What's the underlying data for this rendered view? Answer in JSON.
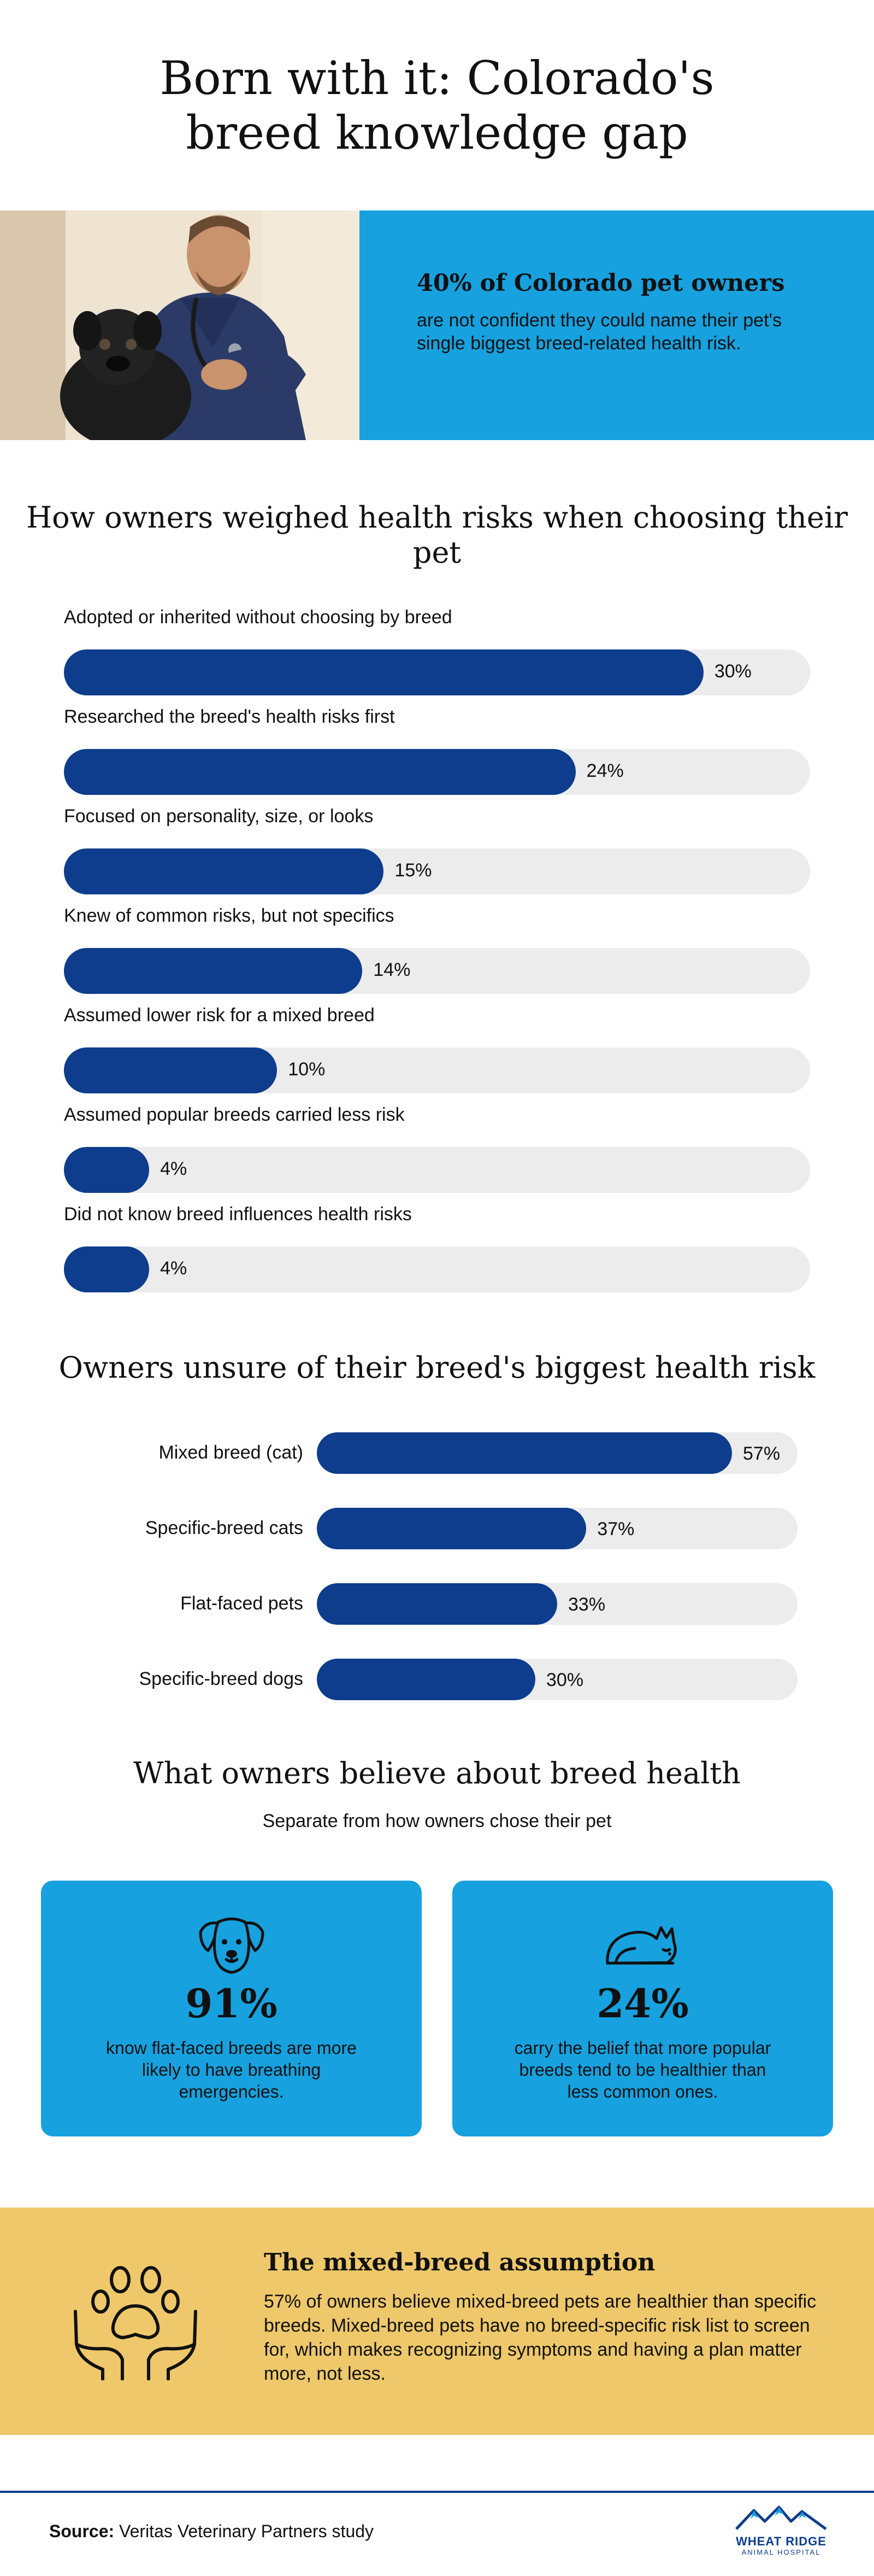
{
  "title": "Born with it: Colorado's breed knowledge gap",
  "hero": {
    "headline": "40% of Colorado pet owners",
    "body": "are not confident they could name their pet's single biggest breed-related health risk."
  },
  "chart_data": [
    {
      "type": "bar",
      "title": "How owners weighed health risks when choosing their pet",
      "orientation": "horizontal",
      "xlim": [
        0,
        35
      ],
      "categories": [
        "Adopted or inherited without choosing by breed",
        "Researched the breed's health risks first",
        "Focused on personality, size, or looks",
        "Knew of common risks, but not specifics",
        "Assumed lower risk for a mixed breed",
        "Assumed popular breeds carried less risk",
        "Did not know breed influences health risks"
      ],
      "values": [
        30,
        24,
        15,
        14,
        10,
        4,
        4
      ],
      "value_labels": [
        "30%",
        "24%",
        "15%",
        "14%",
        "10%",
        "4%",
        "4%"
      ],
      "bar_color": "#0d3d8c",
      "track_color": "#ececec"
    },
    {
      "type": "bar",
      "title": "Owners unsure of their breed's biggest health risk",
      "orientation": "horizontal",
      "xlim": [
        0,
        66
      ],
      "categories": [
        "Mixed breed (cat)",
        "Specific-breed cats",
        "Flat-faced pets",
        "Specific-breed dogs"
      ],
      "values": [
        57,
        37,
        33,
        30
      ],
      "value_labels": [
        "57%",
        "37%",
        "33%",
        "30%"
      ],
      "bar_color": "#0d3d8c",
      "track_color": "#ececec"
    }
  ],
  "beliefs": {
    "title": "What owners believe about breed health",
    "subtitle": "Separate from how owners chose their pet",
    "cards": [
      {
        "icon": "dog-face-icon",
        "pct": "91%",
        "text": "know flat-faced breeds are more likely to have breathing emergencies."
      },
      {
        "icon": "sleeping-cat-icon",
        "pct": "24%",
        "text": "carry the belief that more popular breeds tend to be healthier than less common ones."
      }
    ]
  },
  "mixed": {
    "icon": "paw-in-hands-icon",
    "title": "The mixed-breed assumption",
    "body": "57% of owners believe mixed-breed pets are healthier than specific breeds. Mixed-breed pets have no breed-specific risk list to screen for, which makes recognizing symptoms and having a plan matter more, not less."
  },
  "footer": {
    "source_label": "Source:",
    "source_text": "Veritas Veterinary Partners study",
    "logo_name": "WHEAT RIDGE",
    "logo_sub": "ANIMAL HOSPITAL"
  },
  "colors": {
    "accent_blue": "#17a1de",
    "navy": "#0d3d8c",
    "gold": "#eec86a",
    "track": "#ececec"
  }
}
